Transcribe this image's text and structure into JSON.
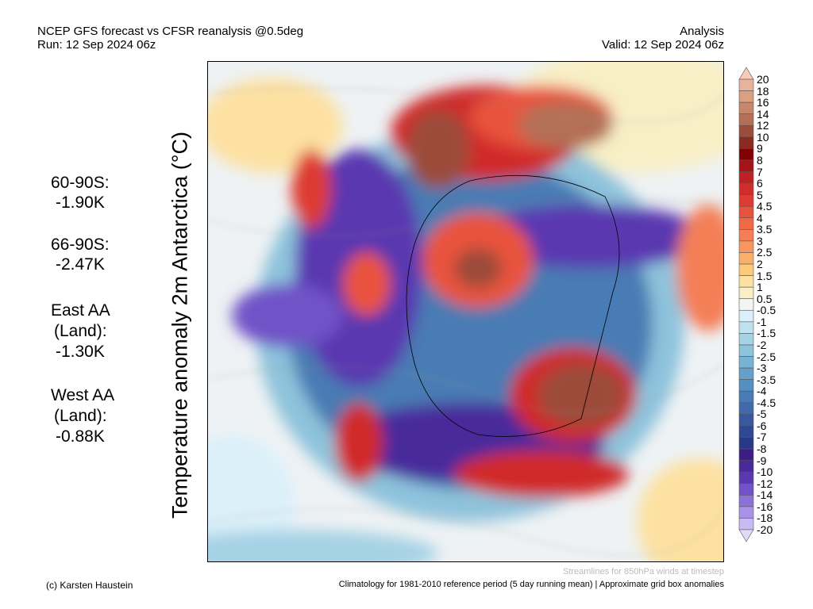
{
  "header": {
    "title": "NCEP GFS forecast vs CFSR reanalysis @0.5deg",
    "run": "Run: 12 Sep 2024 06z",
    "mode": "Analysis",
    "valid": "Valid: 12 Sep 2024 06z"
  },
  "ylabel": "Temperature anomaly 2m Antarctica (°C)",
  "stats": [
    {
      "region": "60-90S:",
      "value": "-1.90K"
    },
    {
      "region": "66-90S:",
      "value": "-2.47K"
    },
    {
      "region": "East AA",
      "sub": "(Land):",
      "value": "-1.30K"
    },
    {
      "region": "West AA",
      "sub": "(Land):",
      "value": "-0.88K"
    }
  ],
  "colorbar": {
    "labels": [
      "20",
      "18",
      "16",
      "14",
      "12",
      "10",
      "9",
      "8",
      "7",
      "6",
      "5",
      "4.5",
      "4",
      "3.5",
      "3",
      "2.5",
      "2",
      "1.5",
      "1",
      "0.5",
      "-0.5",
      "-1",
      "-1.5",
      "-2",
      "-2.5",
      "-3",
      "-3.5",
      "-4",
      "-4.5",
      "-5",
      "-6",
      "-7",
      "-8",
      "-9",
      "-10",
      "-12",
      "-14",
      "-16",
      "-18",
      "-20"
    ],
    "colors": [
      "#f9cbb6",
      "#e8b29c",
      "#daa082",
      "#c8866a",
      "#b47056",
      "#9c4c3a",
      "#8a2a20",
      "#800006",
      "#a51318",
      "#bf2024",
      "#d02c2c",
      "#dd3b33",
      "#e9523c",
      "#f06946",
      "#f47f56",
      "#f89860",
      "#fbb06a",
      "#fdc97a",
      "#fde1a2",
      "#f8efc6",
      "#f4f4f4",
      "#dcf0fa",
      "#bfe2f0",
      "#a6d2e5",
      "#8ec3dc",
      "#79b3d3",
      "#64a1ca",
      "#5490bf",
      "#4a7cb4",
      "#4169ab",
      "#38589f",
      "#2f4893",
      "#283886",
      "#3a1e86",
      "#4a2a9b",
      "#5a39b0",
      "#7152c8",
      "#8d70d8",
      "#a992e8",
      "#c9baf4",
      "#dedafc"
    ]
  },
  "footer": {
    "credit": "(c) Karsten Haustein",
    "streamlines": "Streamlines for 850hPa winds at timestep",
    "climatology": "Climatology for 1981-2010 reference period (5 day running mean) | Approximate grid box anomalies"
  }
}
